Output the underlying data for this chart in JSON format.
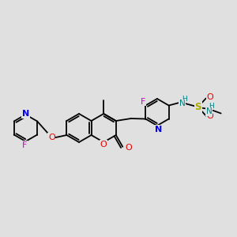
{
  "background_color": "#e0e0e0",
  "colors": {
    "C": "#000000",
    "N": "#0000ee",
    "O": "#ee0000",
    "F": "#cc00cc",
    "S": "#aaaa00",
    "H_teal": "#008080",
    "bond": "#000000"
  },
  "figsize": [
    3.0,
    3.0
  ],
  "dpi": 100
}
